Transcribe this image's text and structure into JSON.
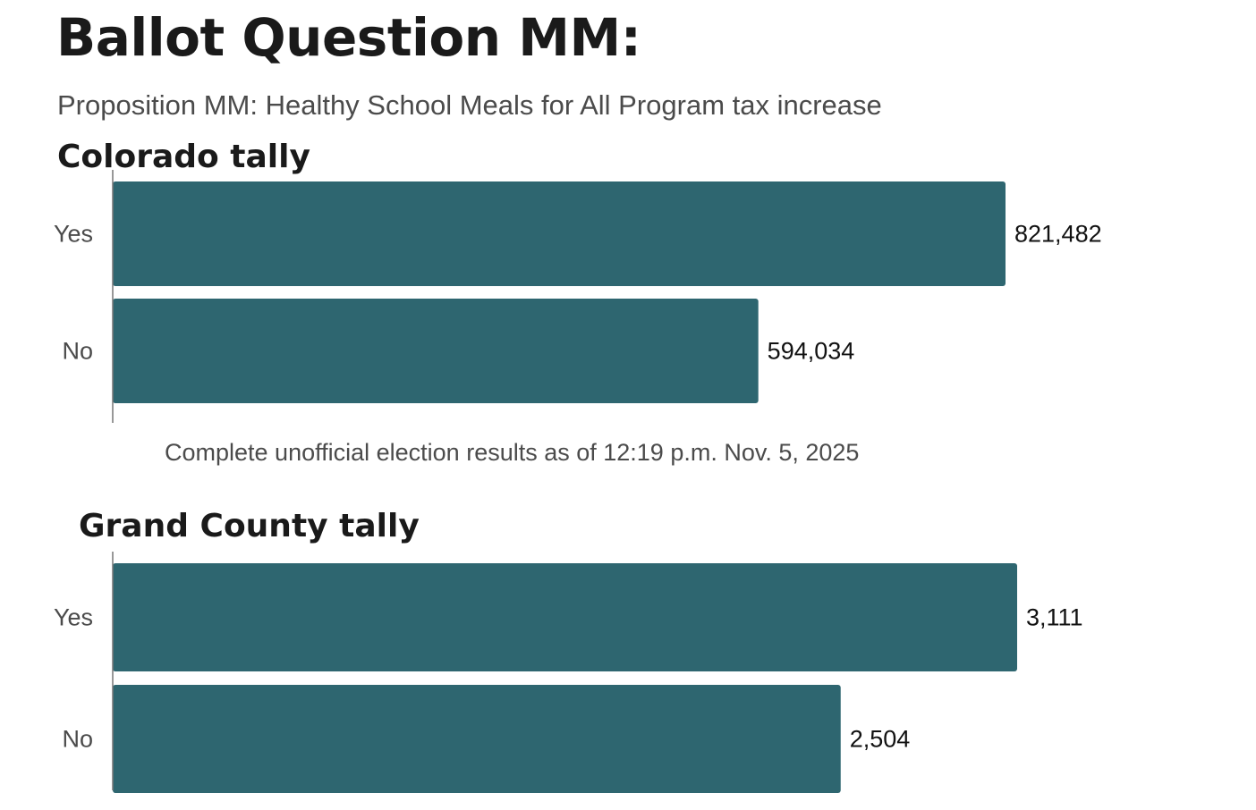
{
  "title": "Ballot Question MM:",
  "subtitle": "Proposition MM: Healthy School Meals for All Program tax increase",
  "note": "Complete unofficial election results as of 12:19 p.m. Nov. 5, 2025",
  "colors": {
    "bar": "#2e6670",
    "axis": "#777777"
  },
  "chart_data": [
    {
      "type": "bar",
      "orientation": "horizontal",
      "title": "Colorado tally",
      "categories": [
        "Yes",
        "No"
      ],
      "values": [
        821482,
        594034
      ],
      "data_labels": [
        "821,482",
        "594,034"
      ],
      "xlim": [
        0,
        821482
      ]
    },
    {
      "type": "bar",
      "orientation": "horizontal",
      "title": "Grand County tally",
      "categories": [
        "Yes",
        "No"
      ],
      "values": [
        3111,
        2504
      ],
      "data_labels": [
        "3,111",
        "2,504"
      ],
      "xlim": [
        0,
        3111
      ]
    }
  ]
}
